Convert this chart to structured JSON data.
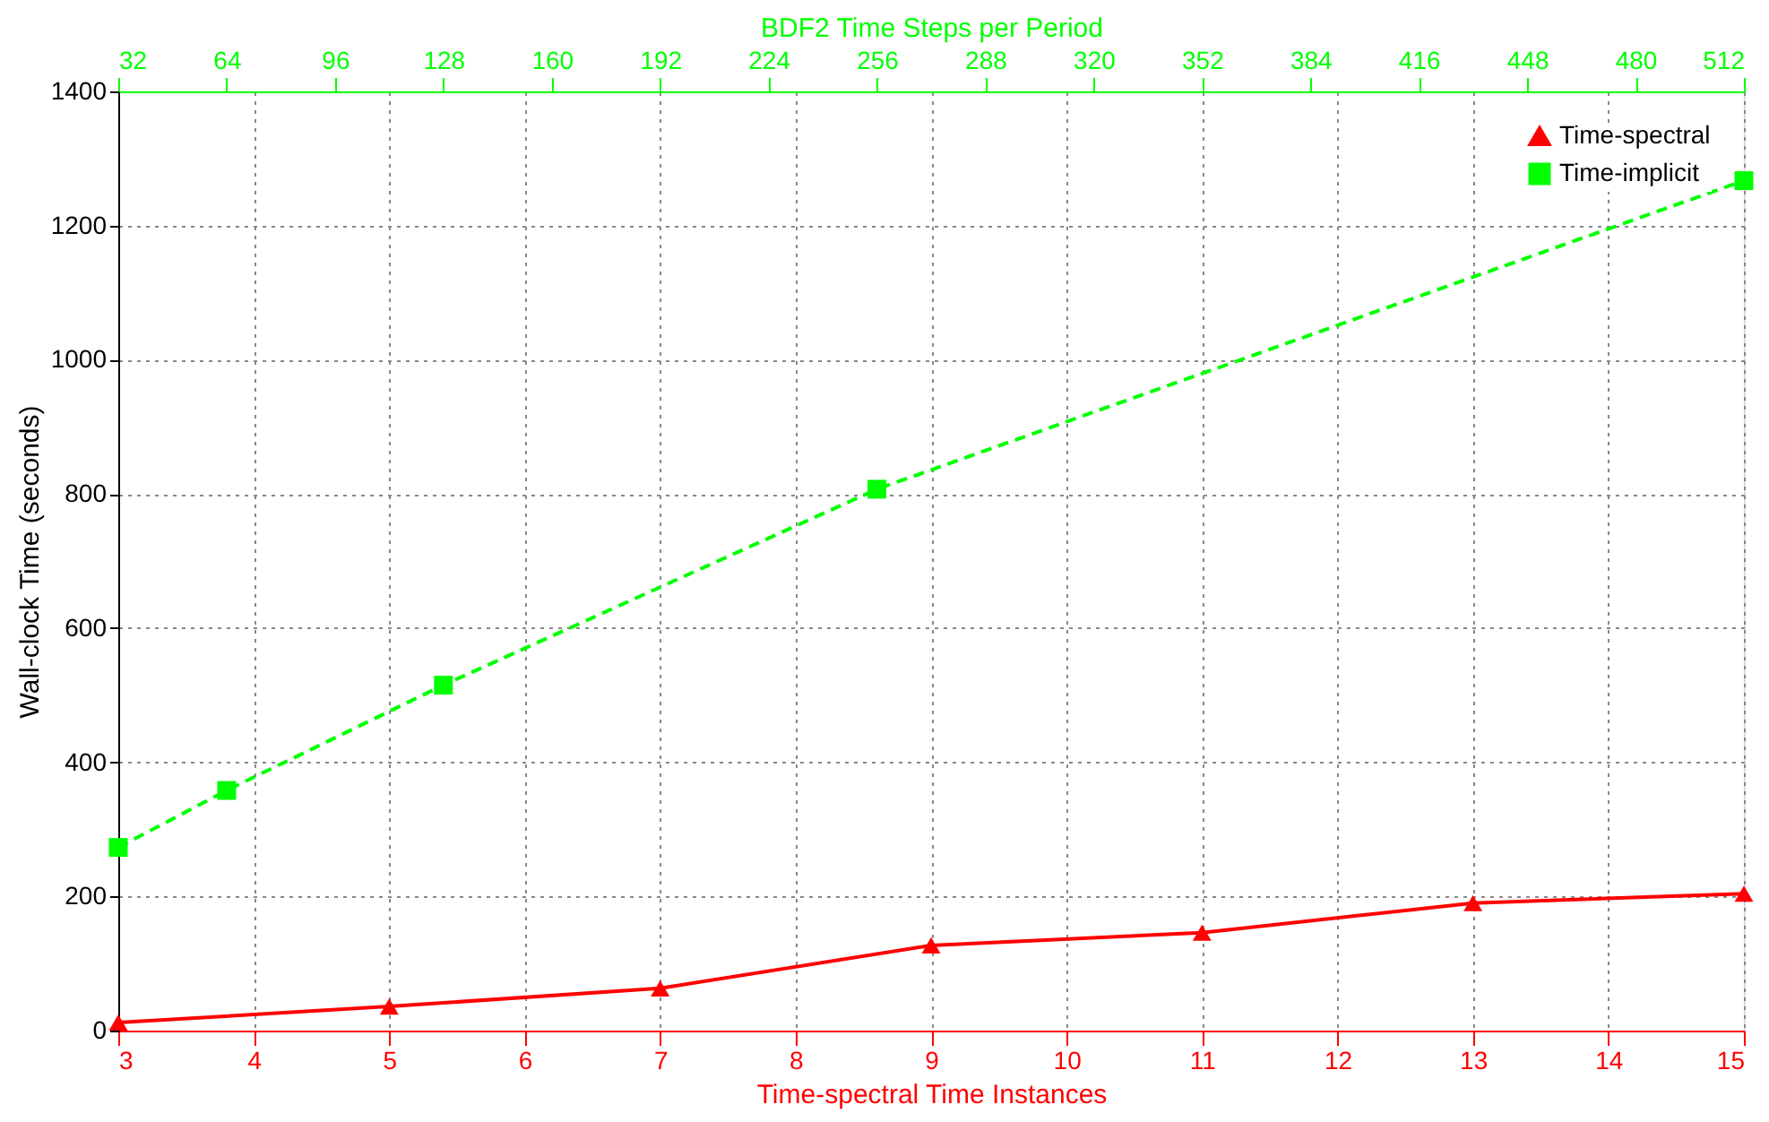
{
  "chart_data": {
    "type": "line",
    "xlabel": "Time-spectral Time Instances",
    "ylabel": "Wall-clock Time (seconds)",
    "x2label": "BDF2 Time Steps per Period",
    "xlim": [
      3,
      15
    ],
    "xticks": [
      3,
      4,
      5,
      6,
      7,
      8,
      9,
      10,
      11,
      12,
      13,
      14,
      15
    ],
    "x2lim": [
      32,
      512
    ],
    "x2ticks": [
      32,
      64,
      96,
      128,
      160,
      192,
      224,
      256,
      288,
      320,
      352,
      384,
      416,
      448,
      480,
      512
    ],
    "ylim": [
      0,
      1400
    ],
    "yticks": [
      0,
      200,
      400,
      600,
      800,
      1000,
      1200,
      1400
    ],
    "grid": true,
    "legend": "top right",
    "series": [
      {
        "name": "Time-spectral",
        "color": "#ff0000",
        "marker": "triangle",
        "line_style": "solid",
        "x": [
          3,
          5,
          7,
          9,
          11,
          13,
          15
        ],
        "values": [
          12,
          36,
          63,
          127,
          146,
          190,
          204
        ]
      },
      {
        "name": "Time-implicit",
        "color": "#00ff00",
        "marker": "square",
        "line_style": "dashed",
        "axis": "x2",
        "x": [
          32,
          64,
          128,
          256,
          512
        ],
        "values": [
          273,
          358,
          515,
          807,
          1267
        ]
      }
    ]
  }
}
